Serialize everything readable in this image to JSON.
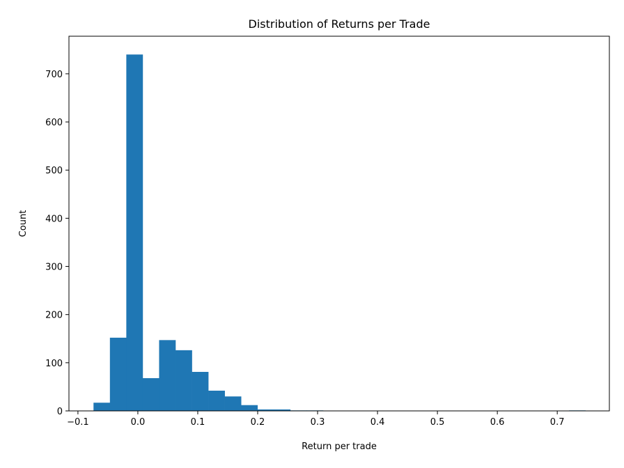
{
  "chart_data": {
    "type": "bar",
    "title": "Distribution of Returns per Trade",
    "xlabel": "Return per trade",
    "ylabel": "Count",
    "bin_start": -0.074,
    "bin_width": 0.02737,
    "values": [
      17,
      152,
      740,
      68,
      147,
      126,
      81,
      42,
      30,
      12,
      3,
      3,
      1,
      1,
      0,
      0,
      0,
      0,
      0,
      0,
      0,
      0,
      0,
      0,
      0,
      0,
      0,
      0,
      0,
      1
    ],
    "xlim": [
      -0.115,
      0.787
    ],
    "ylim": [
      0,
      778
    ],
    "xticks": [
      -0.1,
      0.0,
      0.1,
      0.2,
      0.3,
      0.4,
      0.5,
      0.6,
      0.7
    ],
    "xtick_labels": [
      "−0.1",
      "0.0",
      "0.1",
      "0.2",
      "0.3",
      "0.4",
      "0.5",
      "0.6",
      "0.7"
    ],
    "yticks": [
      0,
      100,
      200,
      300,
      400,
      500,
      600,
      700
    ],
    "ytick_labels": [
      "0",
      "100",
      "200",
      "300",
      "400",
      "500",
      "600",
      "700"
    ],
    "grid": false,
    "bar_color": "#1f77b4"
  }
}
